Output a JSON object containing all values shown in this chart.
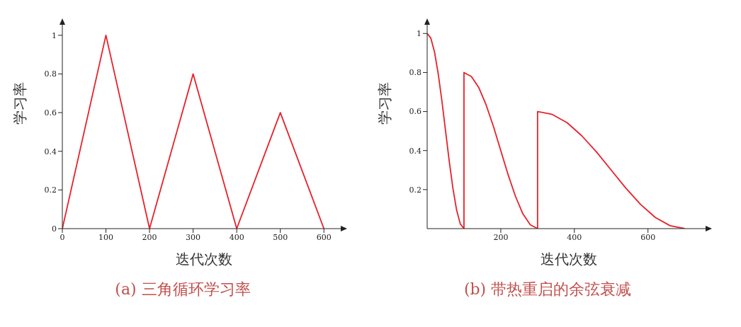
{
  "chart_data": [
    {
      "type": "line",
      "title": "(a) 三角循环学习率",
      "xlabel": "迭代次数",
      "ylabel": "学习率",
      "xlim": [
        0,
        650
      ],
      "ylim": [
        0,
        1.08
      ],
      "xticks": [
        0,
        100,
        200,
        300,
        400,
        500,
        600
      ],
      "yticks": [
        0,
        0.2,
        0.4,
        0.6,
        0.8,
        1
      ],
      "grid": false,
      "legend": false,
      "series": [
        {
          "color": "#e8202a",
          "x": [
            0,
            100,
            200,
            300,
            400,
            500,
            600
          ],
          "values": [
            0,
            1,
            0,
            0.8,
            0,
            0.6,
            0
          ]
        }
      ]
    },
    {
      "type": "line",
      "title": "(b) 带热重启的余弦衰减",
      "xlabel": "迭代次数",
      "ylabel": "学习率",
      "xlim": [
        0,
        770
      ],
      "ylim": [
        0,
        1.07
      ],
      "xticks": [
        200,
        400,
        600
      ],
      "yticks": [
        0.2,
        0.4,
        0.6,
        0.8,
        1
      ],
      "grid": false,
      "legend": false,
      "series": [
        {
          "color": "#e8202a",
          "x": [
            0,
            10,
            20,
            30,
            40,
            50,
            60,
            70,
            80,
            90,
            100,
            100,
            120,
            140,
            160,
            180,
            200,
            220,
            240,
            260,
            280,
            300,
            300,
            340,
            380,
            420,
            460,
            500,
            540,
            580,
            620,
            660,
            700
          ],
          "values": [
            1,
            0.976,
            0.905,
            0.794,
            0.655,
            0.5,
            0.345,
            0.206,
            0.095,
            0.024,
            0,
            0.8,
            0.78,
            0.724,
            0.635,
            0.524,
            0.4,
            0.276,
            0.165,
            0.076,
            0.02,
            0,
            0.6,
            0.585,
            0.543,
            0.476,
            0.393,
            0.3,
            0.207,
            0.124,
            0.057,
            0.015,
            0
          ]
        }
      ]
    }
  ]
}
